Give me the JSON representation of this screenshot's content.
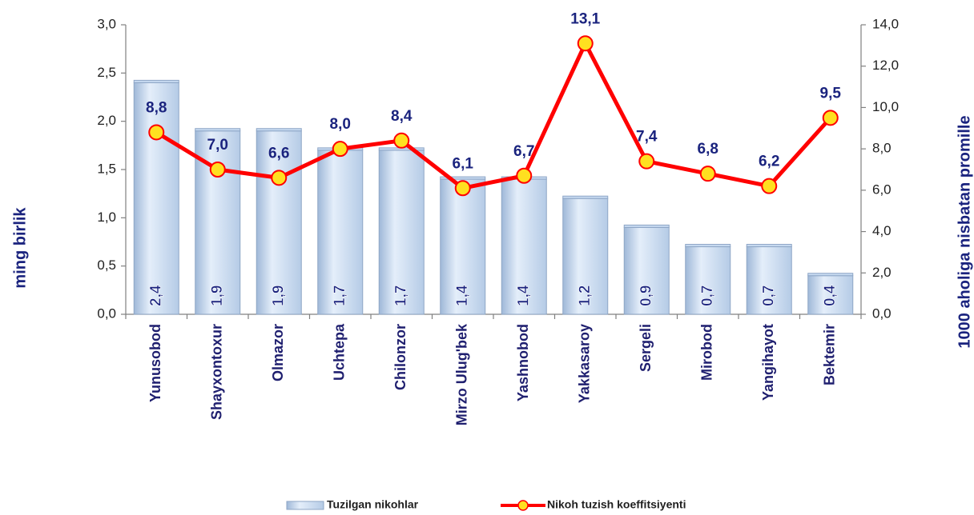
{
  "chart_data": {
    "type": "bar",
    "categories": [
      "Yunusobod",
      "Shayxontoxur",
      "Olmazor",
      "Uchtepa",
      "Chilonzor",
      "Mirzo Ulug'bek",
      "Yashnobod",
      "Yakkasaroy",
      "Sergeli",
      "Mirobod",
      "Yangihayot",
      "Bektemir"
    ],
    "series": [
      {
        "name": "Tuzilgan nikohlar",
        "type": "bar",
        "color": "#c6d9f0",
        "values": [
          2.4,
          1.9,
          1.9,
          1.7,
          1.7,
          1.4,
          1.4,
          1.2,
          0.9,
          0.7,
          0.7,
          0.4
        ],
        "value_labels": [
          "2,4",
          "1,9",
          "1,9",
          "1,7",
          "1,7",
          "1,4",
          "1,4",
          "1,2",
          "0,9",
          "0,7",
          "0,7",
          "0,4"
        ]
      },
      {
        "name": "Nikoh tuzish koeffitsiyenti",
        "type": "line",
        "axis": "y2",
        "color": "#ff0000",
        "values": [
          8.8,
          7.0,
          6.6,
          8.0,
          8.4,
          6.1,
          6.7,
          13.1,
          7.4,
          6.8,
          6.2,
          9.5
        ],
        "value_labels": [
          "8,8",
          "7,0",
          "6,6",
          "8,0",
          "8,4",
          "6,1",
          "6,7",
          "13,1",
          "7,4",
          "6,8",
          "6,2",
          "9,5"
        ]
      }
    ],
    "ylabel": "ming  birlik",
    "y2label": "1000 aholiga nisbatan promille",
    "ylim": [
      0,
      3
    ],
    "yticks": [
      {
        "value": 0,
        "label": "0,0"
      },
      {
        "value": 0.5,
        "label": "0,5"
      },
      {
        "value": 1,
        "label": "1,0"
      },
      {
        "value": 1.5,
        "label": "1,5"
      },
      {
        "value": 2,
        "label": "2,0"
      },
      {
        "value": 2.5,
        "label": "2,5"
      },
      {
        "value": 3,
        "label": "3,0"
      }
    ],
    "y2lim": [
      0,
      14
    ],
    "y2ticks": [
      {
        "value": 0,
        "label": "0,0"
      },
      {
        "value": 2,
        "label": "2,0"
      },
      {
        "value": 4,
        "label": "4,0"
      },
      {
        "value": 6,
        "label": "6,0"
      },
      {
        "value": 8,
        "label": "8,0"
      },
      {
        "value": 10,
        "label": "10,0"
      },
      {
        "value": 12,
        "label": "12,0"
      },
      {
        "value": 14,
        "label": "14,0"
      }
    ],
    "legend": "bottom"
  }
}
